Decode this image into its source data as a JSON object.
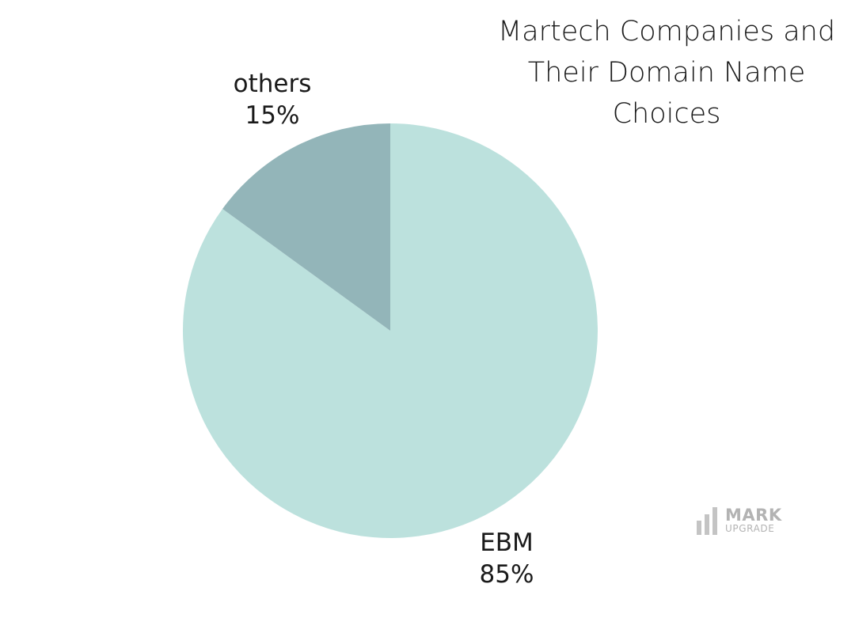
{
  "chart_data": {
    "type": "pie",
    "title": "Martech Companies and Their Domain Name Choices",
    "title_lines": [
      "Martech Companies and",
      "Their Domain Name",
      "Choices"
    ],
    "slices": [
      {
        "label": "EBM",
        "value": 85,
        "value_label": "85%",
        "color": "#bce1dd"
      },
      {
        "label": "others",
        "value": 15,
        "value_label": "15%",
        "color": "#93b5b9"
      }
    ],
    "start_angle": "12 o'clock",
    "direction": "clockwise",
    "legend": "none"
  },
  "watermark": {
    "line1": "MARK",
    "line2": "UPGRADE"
  }
}
